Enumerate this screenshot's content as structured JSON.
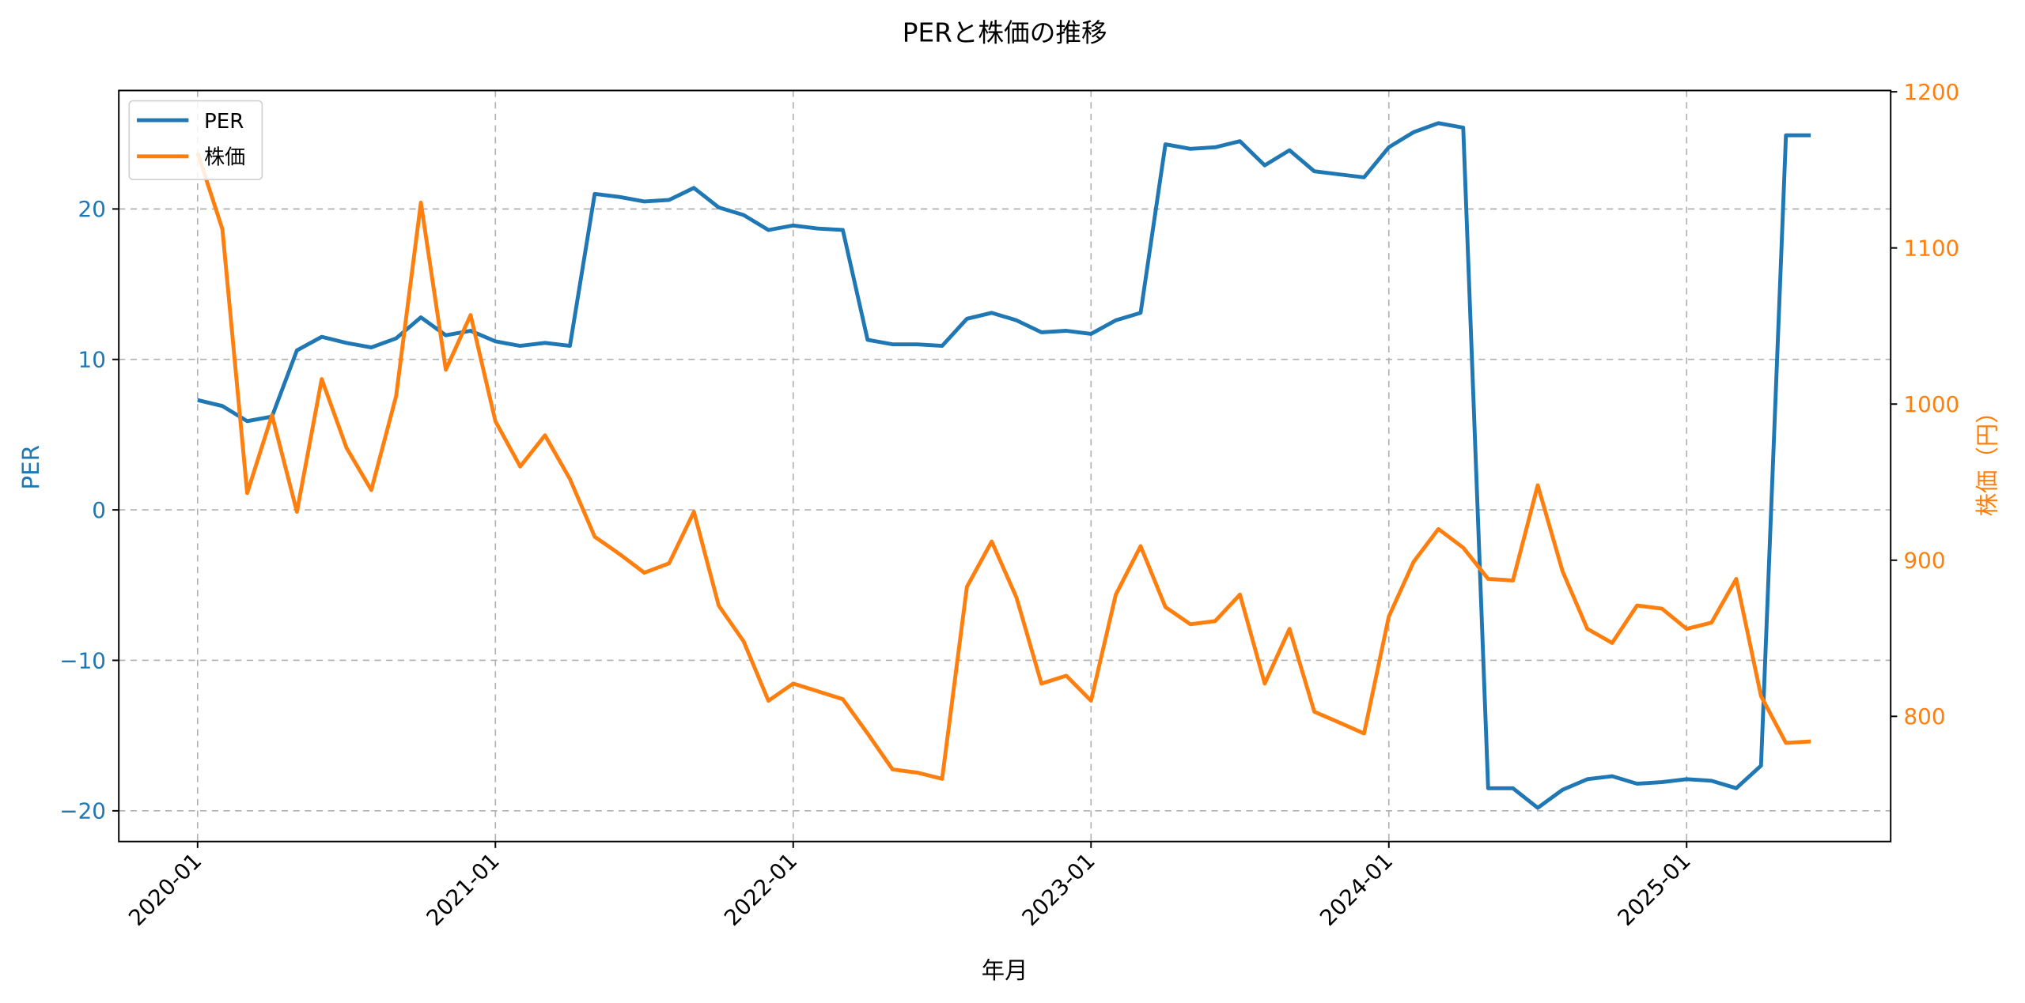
{
  "chart_data": {
    "type": "line",
    "title": "PERと株価の推移",
    "xlabel": "年月",
    "ylabel": "PER",
    "ylabel_right": "株価（円）",
    "x_tick_labels": [
      "2020-01",
      "2021-01",
      "2022-01",
      "2023-01",
      "2024-01",
      "2025-01"
    ],
    "y_ticks_left": [
      20,
      10,
      0,
      -10,
      -20
    ],
    "y_ticks_right": [
      1200,
      1100,
      1000,
      900,
      800
    ],
    "ylim_left": [
      -22,
      28
    ],
    "ylim_right": [
      720,
      1200
    ],
    "grid": true,
    "legend_position": "upper left",
    "x": [
      "2020-01",
      "2020-02",
      "2020-03",
      "2020-04",
      "2020-05",
      "2020-06",
      "2020-07",
      "2020-08",
      "2020-09",
      "2020-10",
      "2020-11",
      "2020-12",
      "2021-01",
      "2021-02",
      "2021-03",
      "2021-04",
      "2021-05",
      "2021-06",
      "2021-07",
      "2021-08",
      "2021-09",
      "2021-10",
      "2021-11",
      "2021-12",
      "2022-01",
      "2022-02",
      "2022-03",
      "2022-04",
      "2022-05",
      "2022-06",
      "2022-07",
      "2022-08",
      "2022-09",
      "2022-10",
      "2022-11",
      "2022-12",
      "2023-01",
      "2023-02",
      "2023-03",
      "2023-04",
      "2023-05",
      "2023-06",
      "2023-07",
      "2023-08",
      "2023-09",
      "2023-10",
      "2023-11",
      "2023-12",
      "2024-01",
      "2024-02",
      "2024-03",
      "2024-04",
      "2024-05",
      "2024-06",
      "2024-07",
      "2024-08",
      "2024-09",
      "2024-10",
      "2024-11",
      "2024-12",
      "2025-01",
      "2025-02",
      "2025-03",
      "2025-04",
      "2025-05",
      "2025-06"
    ],
    "series": [
      {
        "name": "PER",
        "axis": "left",
        "color": "#1f77b4",
        "values": [
          7.3,
          6.9,
          5.9,
          6.2,
          10.6,
          11.5,
          11.1,
          10.8,
          11.4,
          12.8,
          11.6,
          11.9,
          11.2,
          10.9,
          11.1,
          10.9,
          21.0,
          20.8,
          20.5,
          20.6,
          21.4,
          20.1,
          19.6,
          18.6,
          18.9,
          18.7,
          18.6,
          11.3,
          11.0,
          11.0,
          10.9,
          12.7,
          13.1,
          12.6,
          11.8,
          11.9,
          11.7,
          12.6,
          13.1,
          24.3,
          24.0,
          24.1,
          24.5,
          22.9,
          23.9,
          22.5,
          22.3,
          22.1,
          24.1,
          25.1,
          25.7,
          25.4,
          -18.5,
          -18.5,
          -19.8,
          -18.6,
          -17.9,
          -17.7,
          -18.2,
          -18.1,
          -17.9,
          -18.0,
          -18.5,
          -17.0,
          24.9,
          24.9
        ]
      },
      {
        "name": "株価",
        "axis": "right",
        "color": "#ff7f0e",
        "values": [
          1161,
          1112,
          943,
          993,
          931,
          1016,
          972,
          945,
          1005,
          1129,
          1022,
          1057,
          989,
          960,
          980,
          952,
          915,
          904,
          892,
          898,
          931,
          871,
          848,
          810,
          821,
          816,
          811,
          789,
          766,
          764,
          760,
          883,
          912,
          876,
          821,
          826,
          810,
          878,
          909,
          870,
          859,
          861,
          878,
          821,
          856,
          803,
          796,
          789,
          864,
          899,
          920,
          908,
          888,
          887,
          948,
          893,
          856,
          847,
          871,
          869,
          856,
          860,
          888,
          813,
          783,
          784
        ]
      }
    ]
  },
  "legend": {
    "items": [
      {
        "label": "PER",
        "color": "#1f77b4"
      },
      {
        "label": "株価",
        "color": "#ff7f0e"
      }
    ]
  }
}
